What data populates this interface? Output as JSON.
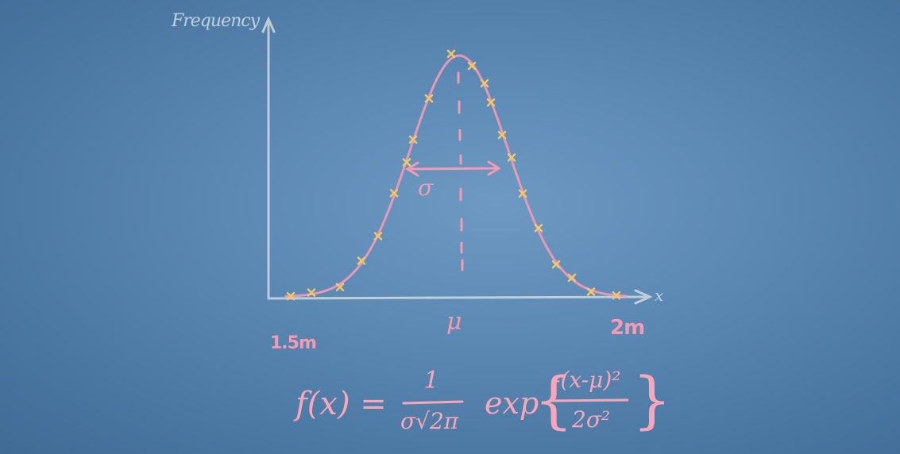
{
  "diagram": {
    "y_axis_label": "Frequency",
    "x_axis_label": "x",
    "x_min_label": "1.5m",
    "x_max_label": "2m",
    "mean_label": "μ",
    "spread_label": "σ",
    "formula": {
      "lhs": "f(x) =",
      "coef_numerator": "1",
      "coef_denominator": "σ√2π",
      "exp_label": "exp",
      "exp_numerator": "-(x-μ)²",
      "exp_denominator": "2σ²"
    }
  },
  "colors": {
    "board": "#5b88b3",
    "axis_chalk": "#cfd9df",
    "pink_chalk": "#f39ab4",
    "point_chalk": "#f2c66a"
  },
  "chart_data": {
    "type": "scatter",
    "x_range_labels": [
      "1.5m",
      "2m"
    ],
    "curve": "normal",
    "annotations": [
      "μ",
      "σ"
    ]
  }
}
